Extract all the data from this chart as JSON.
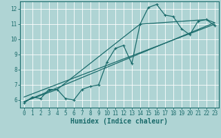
{
  "xlabel": "Humidex (Indice chaleur)",
  "ylabel": "",
  "xlim": [
    -0.5,
    23.5
  ],
  "ylim": [
    5.5,
    12.5
  ],
  "yticks": [
    6,
    7,
    8,
    9,
    10,
    11,
    12
  ],
  "xticks": [
    0,
    1,
    2,
    3,
    4,
    5,
    6,
    7,
    8,
    9,
    10,
    11,
    12,
    13,
    14,
    15,
    16,
    17,
    18,
    19,
    20,
    21,
    22,
    23
  ],
  "bg_color": "#afd4d4",
  "grid_color": "#ffffff",
  "line_color": "#1a6b6b",
  "curve_x": [
    0,
    1,
    2,
    3,
    4,
    5,
    6,
    7,
    8,
    9,
    10,
    11,
    12,
    13,
    14,
    15,
    16,
    17,
    18,
    19,
    20,
    21,
    22,
    23
  ],
  "curve_y": [
    5.8,
    6.2,
    6.1,
    6.7,
    6.7,
    6.1,
    6.0,
    6.7,
    6.9,
    7.0,
    8.5,
    9.4,
    9.6,
    8.4,
    11.0,
    12.1,
    12.3,
    11.6,
    11.5,
    10.7,
    10.3,
    11.2,
    11.3,
    10.9
  ],
  "trend1_x": [
    0,
    23
  ],
  "trend1_y": [
    5.9,
    11.1
  ],
  "trend2_x": [
    0,
    23
  ],
  "trend2_y": [
    6.2,
    11.0
  ],
  "trend3_x": [
    0,
    4,
    14,
    22,
    23
  ],
  "trend3_y": [
    5.9,
    6.7,
    11.0,
    11.3,
    11.1
  ]
}
